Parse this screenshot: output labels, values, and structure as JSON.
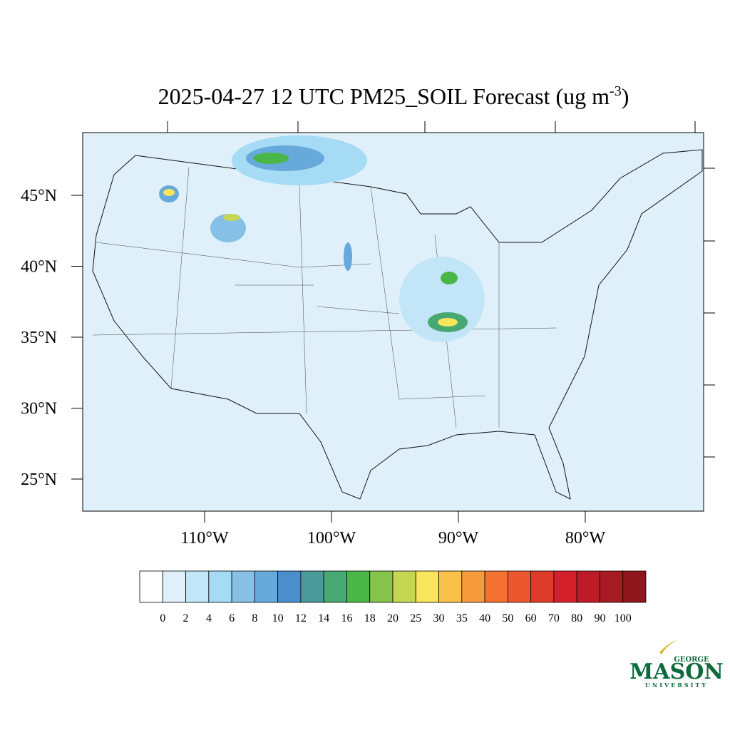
{
  "map": {
    "title": {
      "text": "2025-04-27 12 UTC PM25_SOIL Forecast (ug m",
      "superscript": "-3",
      "suffix": ")"
    },
    "lat_ticks": [
      {
        "value": 45,
        "label": "45°N"
      },
      {
        "value": 40,
        "label": "40°N"
      },
      {
        "value": 35,
        "label": "35°N"
      },
      {
        "value": 30,
        "label": "30°N"
      },
      {
        "value": 25,
        "label": "25°N"
      }
    ],
    "lon_ticks": [
      {
        "value": -110,
        "label": "110°W"
      },
      {
        "value": -100,
        "label": "100°W"
      },
      {
        "value": -90,
        "label": "90°W"
      },
      {
        "value": -80,
        "label": "80°W"
      }
    ],
    "colorbar": {
      "levels": [
        0,
        2,
        4,
        6,
        8,
        10,
        12,
        14,
        16,
        18,
        20,
        25,
        30,
        35,
        40,
        50,
        60,
        70,
        80,
        90,
        100
      ],
      "colors": [
        "#ffffff",
        "#dff0fa",
        "#c2e6f8",
        "#a5dbf5",
        "#86c0e6",
        "#68a9dc",
        "#4a8ecb",
        "#4a9a9a",
        "#48a872",
        "#4bb648",
        "#86c34a",
        "#c5d653",
        "#f8e55b",
        "#f9c04a",
        "#f79c3c",
        "#f37231",
        "#ec5730",
        "#e03a2a",
        "#d4202b",
        "#bd1b27",
        "#a71a22",
        "#8f161c"
      ]
    },
    "logo": {
      "top": "GEORGE",
      "main": "MASON",
      "bottom": "UNIVERSITY"
    }
  }
}
